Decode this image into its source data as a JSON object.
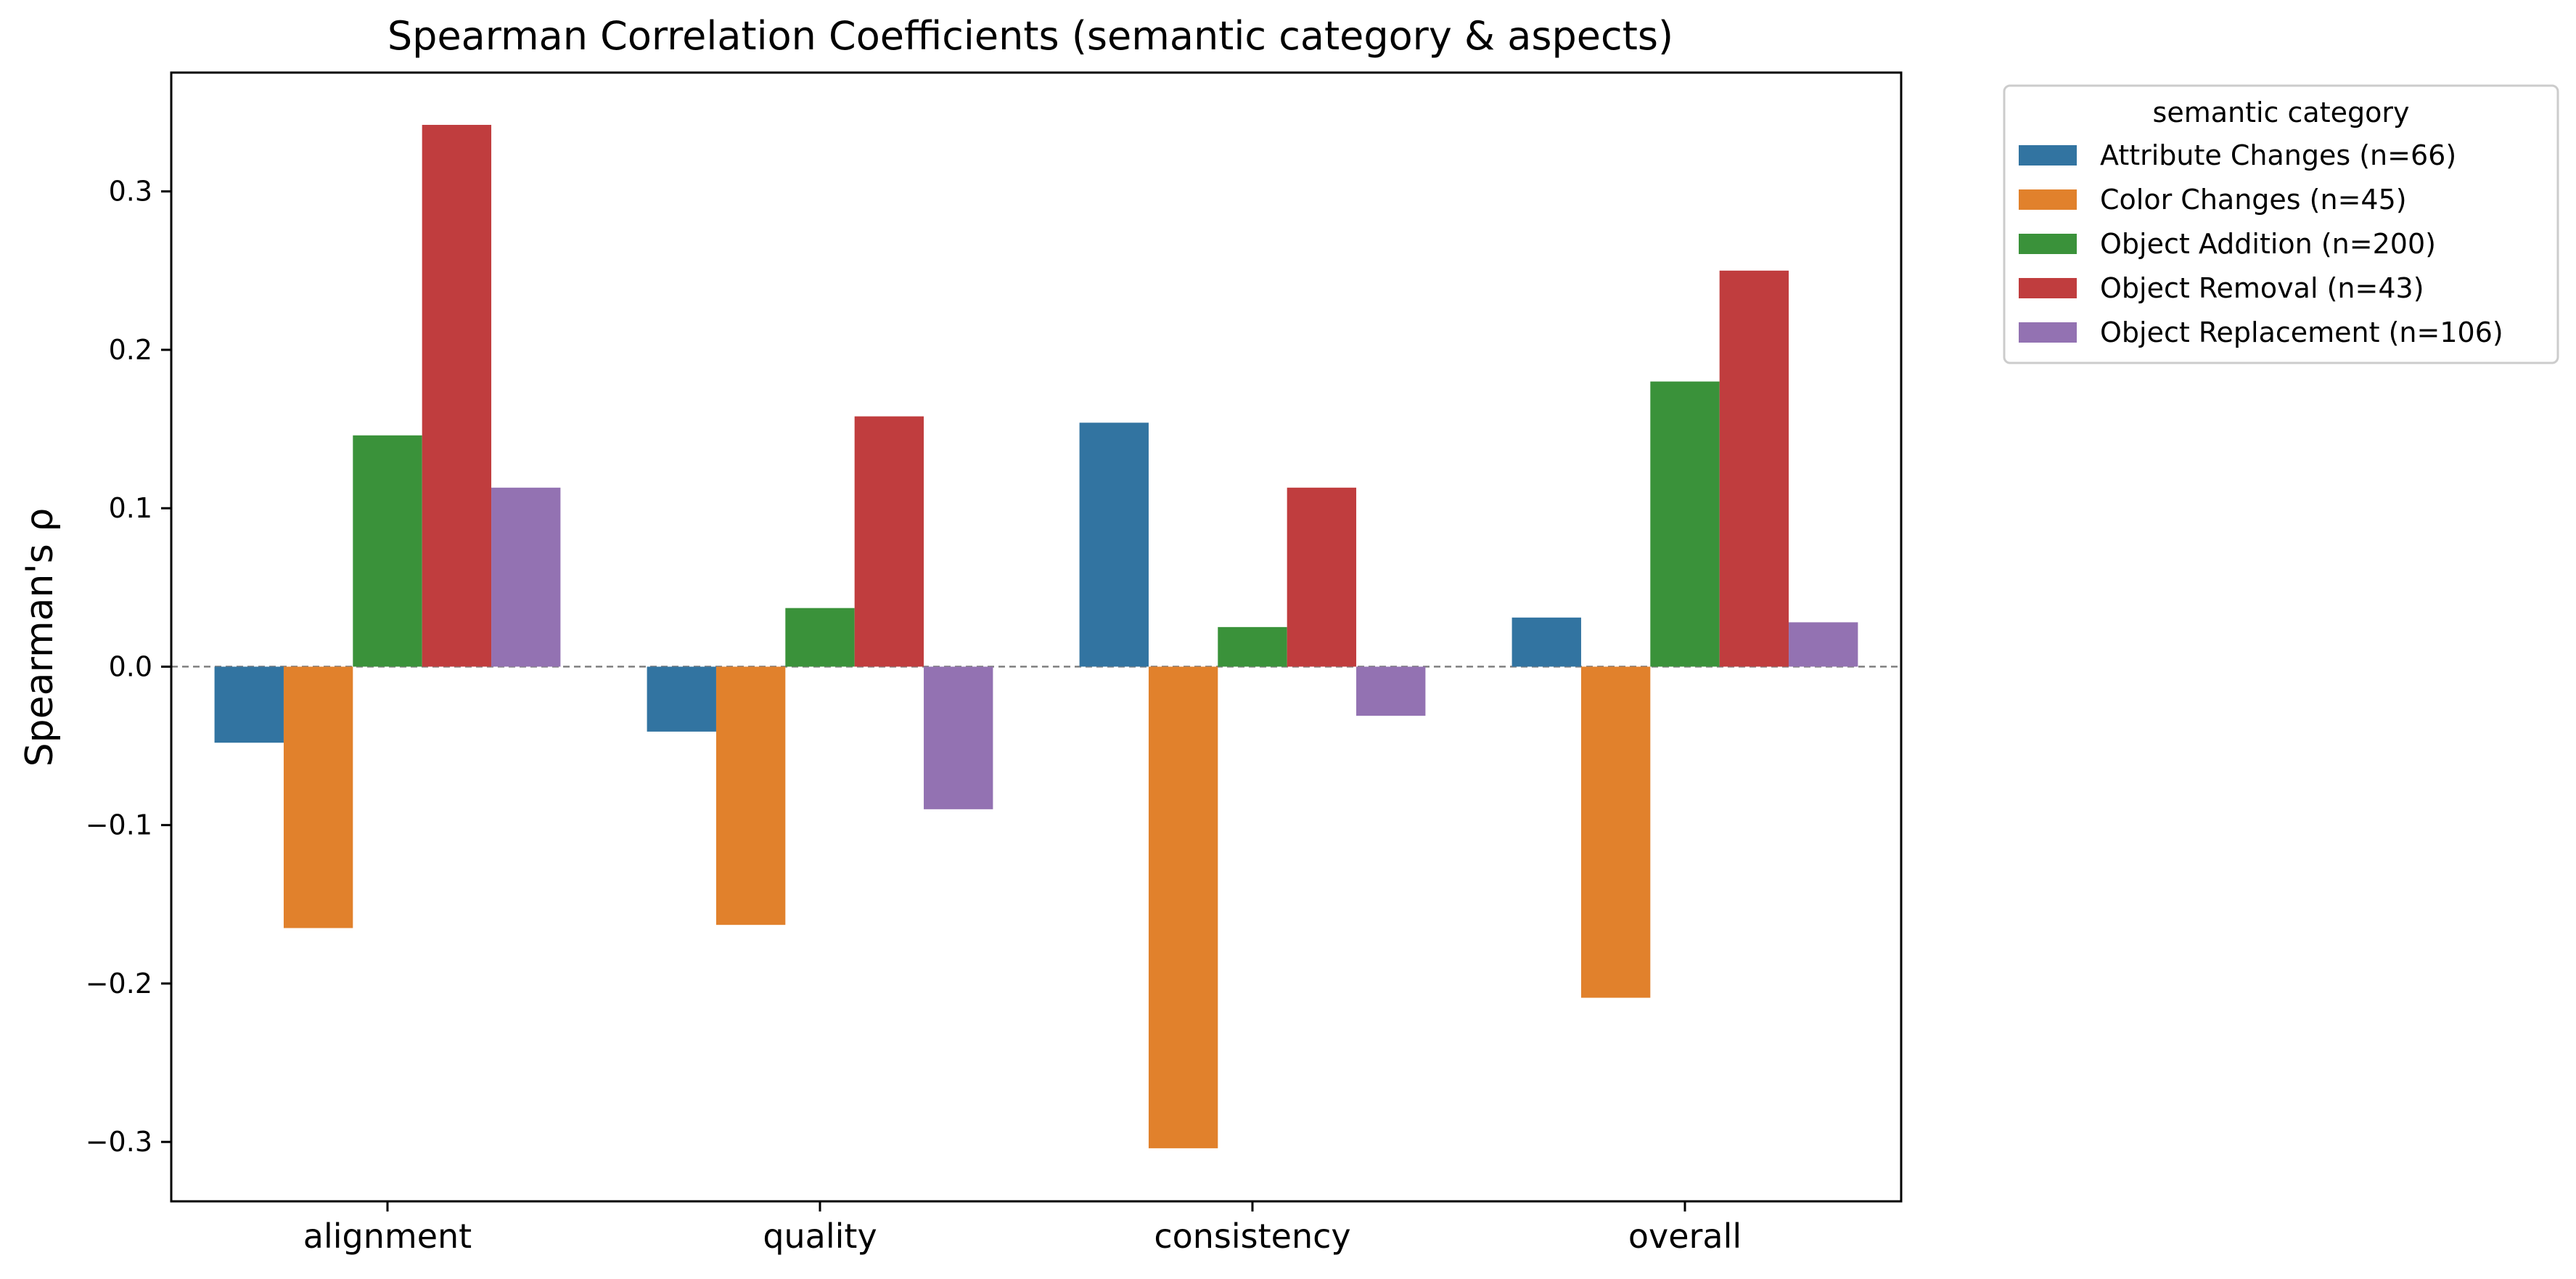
{
  "chart_data": {
    "type": "bar",
    "title": "Spearman Correlation Coefficients (semantic category & aspects)",
    "xlabel": "",
    "ylabel": "Spearman's ρ",
    "categories": [
      "alignment",
      "quality",
      "consistency",
      "overall"
    ],
    "ylim": [
      -0.3375,
      0.375
    ],
    "yticks": [
      -0.3,
      -0.2,
      -0.1,
      0.0,
      0.1,
      0.2,
      0.3
    ],
    "ytick_labels": [
      "−0.3",
      "−0.2",
      "−0.1",
      "0.0",
      "0.1",
      "0.2",
      "0.3"
    ],
    "grid": false,
    "reference_line": {
      "y": 0.0,
      "style": "dashed",
      "color": "#808080"
    },
    "legend": {
      "title": "semantic category",
      "placement": "outside-top-right"
    },
    "series": [
      {
        "name": "Attribute Changes (n=66)",
        "color": "#3274a1",
        "values": [
          -0.048,
          -0.041,
          0.154,
          0.031
        ]
      },
      {
        "name": "Color Changes (n=45)",
        "color": "#e1812c",
        "values": [
          -0.165,
          -0.163,
          -0.304,
          -0.209
        ]
      },
      {
        "name": "Object Addition (n=200)",
        "color": "#3a923a",
        "values": [
          0.146,
          0.037,
          0.025,
          0.18
        ]
      },
      {
        "name": "Object Removal (n=43)",
        "color": "#c03d3e",
        "values": [
          0.342,
          0.158,
          0.113,
          0.25
        ]
      },
      {
        "name": "Object Replacement (n=106)",
        "color": "#9372b2",
        "values": [
          0.113,
          -0.09,
          -0.031,
          0.028
        ]
      }
    ]
  }
}
